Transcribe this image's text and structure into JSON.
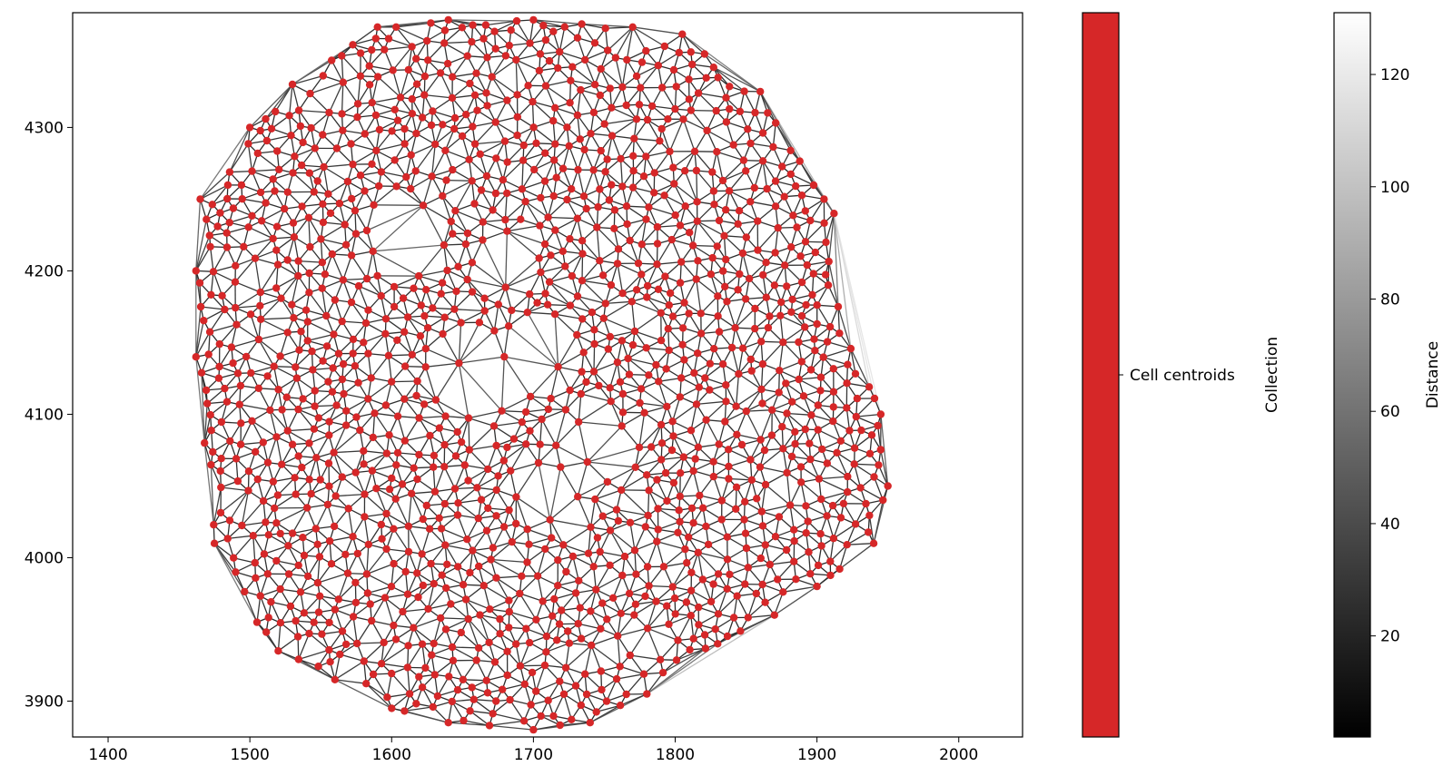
{
  "chart_data": {
    "type": "scatter",
    "description_kind": "delaunay-graph",
    "xlim": [
      1375,
      2045
    ],
    "ylim": [
      3875,
      4380
    ],
    "xticks": [
      1400,
      1500,
      1600,
      1700,
      1800,
      1900,
      2000
    ],
    "yticks": [
      3900,
      4000,
      4100,
      4200,
      4300
    ],
    "xtick_labels": [
      "1400",
      "1500",
      "1600",
      "1700",
      "1800",
      "1900",
      "2000"
    ],
    "ytick_labels": [
      "3900",
      "4000",
      "4100",
      "4200",
      "4300"
    ],
    "grid": false,
    "point_color": "#d62728",
    "series": [
      {
        "label": "Cell centroids",
        "hull": [
          [
            1465,
            4250
          ],
          [
            1500,
            4300
          ],
          [
            1530,
            4330
          ],
          [
            1590,
            4370
          ],
          [
            1640,
            4375
          ],
          [
            1700,
            4375
          ],
          [
            1770,
            4370
          ],
          [
            1805,
            4365
          ],
          [
            1860,
            4325
          ],
          [
            1905,
            4250
          ],
          [
            1912,
            4240
          ],
          [
            1908,
            4190
          ],
          [
            1915,
            4175
          ],
          [
            1945,
            4100
          ],
          [
            1950,
            4050
          ],
          [
            1940,
            4010
          ],
          [
            1900,
            3980
          ],
          [
            1870,
            3960
          ],
          [
            1830,
            3940
          ],
          [
            1780,
            3905
          ],
          [
            1740,
            3885
          ],
          [
            1700,
            3880
          ],
          [
            1640,
            3885
          ],
          [
            1600,
            3895
          ],
          [
            1560,
            3915
          ],
          [
            1520,
            3935
          ],
          [
            1505,
            3955
          ],
          [
            1490,
            3990
          ],
          [
            1475,
            4010
          ],
          [
            1468,
            4080
          ],
          [
            1462,
            4140
          ],
          [
            1462,
            4200
          ],
          [
            1465,
            4250
          ]
        ],
        "sparse_regions": [
          [
            1610,
            4225,
            28
          ],
          [
            1660,
            4125,
            32
          ],
          [
            1700,
            4140,
            26
          ],
          [
            1740,
            4080,
            28
          ],
          [
            1720,
            4040,
            24
          ],
          [
            1680,
            4210,
            20
          ],
          [
            1555,
            4325,
            14
          ],
          [
            1810,
            4290,
            14
          ],
          [
            1870,
            4050,
            14
          ],
          [
            1780,
            3940,
            16
          ],
          [
            1520,
            4160,
            12
          ]
        ]
      }
    ],
    "legend": {
      "colorbar_label": "Collection",
      "category": "Cell centroids",
      "category_color": "#d62728"
    },
    "colorbar": {
      "label": "Distance",
      "vmin": 2,
      "vmax": 131,
      "ticks": [
        20,
        40,
        60,
        80,
        100,
        120
      ],
      "tick_labels": [
        "20",
        "40",
        "60",
        "80",
        "100",
        "120"
      ],
      "color_low": "#000000",
      "color_high": "#ffffff"
    }
  }
}
